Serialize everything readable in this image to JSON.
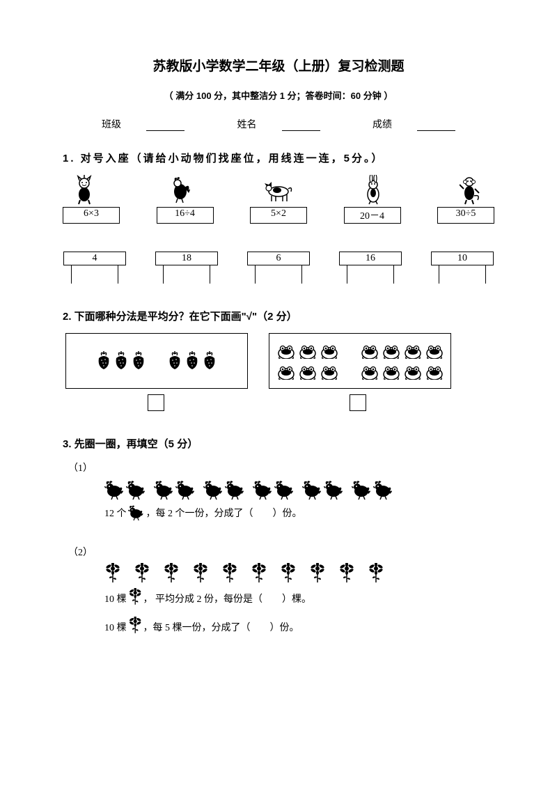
{
  "title": "苏教版小学数学二年级（上册）复习检测题",
  "subtitle": "（ 满分 100 分，其中整洁分 1 分；答卷时间：60 分钟 ）",
  "info": {
    "class_label": "班级",
    "name_label": "姓名",
    "score_label": "成绩"
  },
  "q1": {
    "heading": "1. 对号入座（请给小动物们找座位，用线连一连，5分。）",
    "exprs": [
      "6×3",
      "16÷4",
      "5×2",
      "20－4",
      "30÷5"
    ],
    "seats": [
      "4",
      "18",
      "6",
      "16",
      "10"
    ]
  },
  "q2": {
    "heading": "2. 下面哪种分法是平均分？在它下面画\"√\"（2 分）",
    "left_groups": [
      3,
      3
    ],
    "right_groups": [
      3,
      4
    ]
  },
  "q3": {
    "heading": "3. 先圈一圈，再填空（5 分）",
    "p1_label": "（1）",
    "p1_count": 12,
    "p1_text_a": "12 个",
    "p1_text_b": "，每 2 个一份，分成了（　　）份。",
    "p2_label": "（2）",
    "p2_count": 10,
    "p2_text_a": "10 棵",
    "p2_text_b": "， 平均分成 2 份，每份是（　　）棵。",
    "p2_text_c": "10 棵",
    "p2_text_d": "，每 5 棵一份，分成了（　　）份。"
  }
}
